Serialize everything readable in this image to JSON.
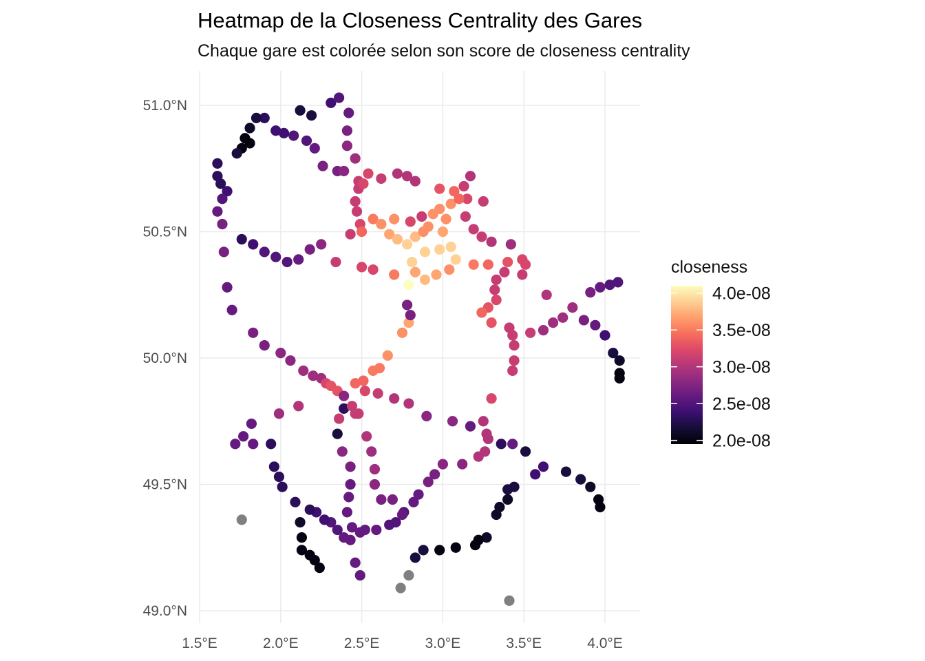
{
  "chart_data": {
    "type": "scatter",
    "title": "Heatmap de la Closeness Centrality des Gares",
    "subtitle": "Chaque gare est colorée selon son score de closeness centrality",
    "xlabel": "",
    "ylabel": "",
    "xlim": [
      1.5,
      4.2
    ],
    "ylim": [
      49.0,
      51.13
    ],
    "x_ticks": [
      1.5,
      2.0,
      2.5,
      3.0,
      3.5,
      4.0
    ],
    "x_tick_labels": [
      "1.5°E",
      "2.0°E",
      "2.5°E",
      "3.0°E",
      "3.5°E",
      "4.0°E"
    ],
    "y_ticks": [
      49.0,
      49.5,
      50.0,
      50.5,
      51.0
    ],
    "y_tick_labels": [
      "49.0°N",
      "49.5°N",
      "50.0°N",
      "50.5°N",
      "51.0°N"
    ],
    "grid": true,
    "legend": {
      "title": "closeness",
      "placement": "right",
      "colormap": "magma",
      "range": [
        1.95e-08,
        4.1e-08
      ],
      "breaks": [
        4e-08,
        3.5e-08,
        3e-08,
        2.5e-08,
        2e-08
      ],
      "labels": [
        "4.0e-08",
        "3.5e-08",
        "3.0e-08",
        "2.5e-08",
        "2.0e-08"
      ]
    },
    "na_color": "#808080",
    "points_columns": [
      "lon",
      "lat",
      "closeness"
    ],
    "points": [
      [
        2.12,
        50.98,
        2.2e-08
      ],
      [
        2.19,
        50.96,
        2.2e-08
      ],
      [
        2.31,
        51.01,
        2.4e-08
      ],
      [
        2.36,
        51.03,
        2.5e-08
      ],
      [
        2.42,
        50.97,
        2.6e-08
      ],
      [
        2.41,
        50.9,
        2.7e-08
      ],
      [
        2.41,
        50.84,
        2.8e-08
      ],
      [
        2.46,
        50.79,
        2.9e-08
      ],
      [
        2.26,
        50.76,
        2.7e-08
      ],
      [
        2.21,
        50.83,
        2.6e-08
      ],
      [
        2.16,
        50.86,
        2.5e-08
      ],
      [
        2.08,
        50.88,
        2.5e-08
      ],
      [
        2.02,
        50.89,
        2.4e-08
      ],
      [
        1.97,
        50.9,
        2.4e-08
      ],
      [
        1.9,
        50.95,
        2.3e-08
      ],
      [
        1.85,
        50.95,
        2.2e-08
      ],
      [
        1.81,
        50.91,
        2.1e-08
      ],
      [
        1.78,
        50.87,
        2e-08
      ],
      [
        1.81,
        50.85,
        2e-08
      ],
      [
        1.76,
        50.83,
        2e-08
      ],
      [
        1.73,
        50.81,
        2.2e-08
      ],
      [
        1.61,
        50.77,
        2.3e-08
      ],
      [
        1.61,
        50.72,
        2.3e-08
      ],
      [
        1.63,
        50.69,
        2.3e-08
      ],
      [
        1.67,
        50.66,
        2.4e-08
      ],
      [
        1.64,
        50.63,
        2.5e-08
      ],
      [
        1.61,
        50.58,
        2.6e-08
      ],
      [
        1.64,
        50.53,
        2.7e-08
      ],
      [
        1.65,
        50.42,
        2.7e-08
      ],
      [
        1.67,
        50.28,
        2.6e-08
      ],
      [
        1.7,
        50.19,
        2.6e-08
      ],
      [
        1.83,
        50.1,
        2.7e-08
      ],
      [
        1.9,
        50.05,
        2.7e-08
      ],
      [
        2.0,
        50.02,
        2.8e-08
      ],
      [
        2.06,
        49.99,
        2.8e-08
      ],
      [
        2.14,
        49.95,
        2.9e-08
      ],
      [
        2.2,
        49.93,
        2.9e-08
      ],
      [
        2.25,
        49.92,
        2.9e-08
      ],
      [
        2.28,
        49.9,
        3.2e-08
      ],
      [
        2.31,
        49.89,
        3.3e-08
      ],
      [
        2.35,
        49.87,
        3.3e-08
      ],
      [
        2.39,
        49.85,
        2.8e-08
      ],
      [
        2.39,
        49.8,
        2.3e-08
      ],
      [
        2.44,
        49.81,
        3.1e-08
      ],
      [
        2.46,
        49.78,
        3.1e-08
      ],
      [
        2.36,
        49.76,
        3.1e-08
      ],
      [
        2.35,
        49.7,
        2.2e-08
      ],
      [
        2.38,
        49.63,
        2.8e-08
      ],
      [
        2.43,
        49.57,
        2.7e-08
      ],
      [
        2.43,
        49.5,
        2.6e-08
      ],
      [
        2.42,
        49.45,
        2.6e-08
      ],
      [
        2.41,
        49.39,
        2.6e-08
      ],
      [
        2.44,
        49.33,
        2.6e-08
      ],
      [
        2.43,
        49.28,
        2.6e-08
      ],
      [
        2.39,
        49.29,
        2.6e-08
      ],
      [
        2.35,
        49.32,
        2.5e-08
      ],
      [
        2.31,
        49.35,
        2.5e-08
      ],
      [
        2.27,
        49.36,
        2.4e-08
      ],
      [
        2.22,
        49.39,
        2.4e-08
      ],
      [
        2.18,
        49.4,
        2.3e-08
      ],
      [
        2.09,
        49.43,
        2.3e-08
      ],
      [
        2.01,
        49.49,
        2.3e-08
      ],
      [
        1.99,
        49.53,
        2.3e-08
      ],
      [
        1.96,
        49.57,
        2.3e-08
      ],
      [
        1.94,
        49.66,
        2.3e-08
      ],
      [
        1.83,
        49.66,
        2.6e-08
      ],
      [
        1.82,
        49.74,
        2.6e-08
      ],
      [
        1.77,
        49.69,
        2.6e-08
      ],
      [
        1.72,
        49.66,
        2.6e-08
      ],
      [
        1.76,
        49.36,
        null
      ],
      [
        2.12,
        49.35,
        2.1e-08
      ],
      [
        2.13,
        49.29,
        2e-08
      ],
      [
        2.13,
        49.24,
        2e-08
      ],
      [
        2.18,
        49.22,
        2e-08
      ],
      [
        2.21,
        49.2,
        2e-08
      ],
      [
        2.24,
        49.17,
        2e-08
      ],
      [
        2.46,
        49.19,
        2.6e-08
      ],
      [
        2.49,
        49.14,
        2.6e-08
      ],
      [
        2.49,
        49.31,
        2.6e-08
      ],
      [
        2.52,
        49.32,
        2.6e-08
      ],
      [
        2.59,
        49.32,
        2.6e-08
      ],
      [
        2.67,
        49.34,
        2.5e-08
      ],
      [
        2.71,
        49.35,
        2.5e-08
      ],
      [
        2.76,
        49.39,
        2.5e-08
      ],
      [
        2.82,
        49.43,
        2.6e-08
      ],
      [
        2.85,
        49.46,
        2.6e-08
      ],
      [
        2.91,
        49.51,
        2.7e-08
      ],
      [
        2.95,
        49.54,
        2.7e-08
      ],
      [
        3.0,
        49.58,
        2.8e-08
      ],
      [
        3.12,
        49.58,
        2.8e-08
      ],
      [
        3.22,
        49.61,
        3e-08
      ],
      [
        3.26,
        49.63,
        3e-08
      ],
      [
        3.36,
        49.66,
        2.3e-08
      ],
      [
        3.43,
        49.66,
        2.6e-08
      ],
      [
        3.51,
        49.63,
        2.2e-08
      ],
      [
        3.44,
        49.49,
        2.2e-08
      ],
      [
        3.4,
        49.48,
        2.2e-08
      ],
      [
        3.4,
        49.44,
        2.1e-08
      ],
      [
        3.35,
        49.41,
        2.1e-08
      ],
      [
        3.33,
        49.38,
        2.1e-08
      ],
      [
        3.27,
        49.29,
        2.1e-08
      ],
      [
        3.22,
        49.28,
        2e-08
      ],
      [
        3.2,
        49.26,
        2e-08
      ],
      [
        3.08,
        49.25,
        2e-08
      ],
      [
        2.98,
        49.24,
        2e-08
      ],
      [
        2.88,
        49.24,
        2.2e-08
      ],
      [
        2.83,
        49.21,
        2.2e-08
      ],
      [
        2.79,
        49.14,
        null
      ],
      [
        2.74,
        49.09,
        null
      ],
      [
        3.41,
        49.04,
        null
      ],
      [
        2.58,
        49.5,
        2.8e-08
      ],
      [
        2.58,
        49.56,
        2.9e-08
      ],
      [
        2.56,
        49.63,
        2.9e-08
      ],
      [
        2.53,
        49.69,
        3e-08
      ],
      [
        2.48,
        49.78,
        3.1e-08
      ],
      [
        2.62,
        49.44,
        2.7e-08
      ],
      [
        2.69,
        49.44,
        2.7e-08
      ],
      [
        2.75,
        49.38,
        2.6e-08
      ],
      [
        3.57,
        49.54,
        2.4e-08
      ],
      [
        3.62,
        49.57,
        2.4e-08
      ],
      [
        3.76,
        49.55,
        2.2e-08
      ],
      [
        3.85,
        49.52,
        2.2e-08
      ],
      [
        3.91,
        49.49,
        2.1e-08
      ],
      [
        3.96,
        49.44,
        2e-08
      ],
      [
        3.97,
        49.41,
        2e-08
      ],
      [
        2.7,
        49.84,
        3e-08
      ],
      [
        2.79,
        49.82,
        3e-08
      ],
      [
        2.9,
        49.77,
        2.8e-08
      ],
      [
        3.06,
        49.75,
        2.8e-08
      ],
      [
        3.17,
        49.73,
        2.6e-08
      ],
      [
        3.25,
        49.75,
        3e-08
      ],
      [
        3.27,
        49.7,
        3e-08
      ],
      [
        3.28,
        49.68,
        3e-08
      ],
      [
        3.3,
        49.84,
        3.2e-08
      ],
      [
        2.6,
        49.86,
        3.1e-08
      ],
      [
        2.52,
        49.87,
        3.2e-08
      ],
      [
        2.46,
        49.9,
        3.4e-08
      ],
      [
        2.51,
        49.91,
        3.4e-08
      ],
      [
        2.57,
        49.95,
        3.5e-08
      ],
      [
        2.61,
        49.96,
        3.5e-08
      ],
      [
        2.66,
        50.01,
        3.6e-08
      ],
      [
        2.75,
        50.1,
        3.6e-08
      ],
      [
        2.79,
        50.14,
        3.7e-08
      ],
      [
        2.78,
        50.21,
        2.7e-08
      ],
      [
        2.8,
        50.17,
        2.7e-08
      ],
      [
        2.79,
        50.29,
        4.1e-08
      ],
      [
        2.11,
        49.81,
        3e-08
      ],
      [
        1.99,
        49.78,
        2.9e-08
      ],
      [
        2.35,
        50.74,
        2.7e-08
      ],
      [
        2.39,
        50.74,
        2.8e-08
      ],
      [
        2.48,
        50.7,
        3.1e-08
      ],
      [
        2.48,
        50.67,
        3.1e-08
      ],
      [
        2.51,
        50.69,
        3.2e-08
      ],
      [
        2.54,
        50.73,
        3.2e-08
      ],
      [
        2.62,
        50.71,
        3.1e-08
      ],
      [
        2.72,
        50.73,
        3e-08
      ],
      [
        2.78,
        50.72,
        3e-08
      ],
      [
        2.83,
        50.7,
        3e-08
      ],
      [
        2.98,
        50.67,
        3.3e-08
      ],
      [
        3.07,
        50.66,
        3.4e-08
      ],
      [
        3.13,
        50.68,
        3.1e-08
      ],
      [
        3.17,
        50.72,
        3e-08
      ],
      [
        3.15,
        50.63,
        3.2e-08
      ],
      [
        3.25,
        50.62,
        3.1e-08
      ],
      [
        2.46,
        50.62,
        3.1e-08
      ],
      [
        2.47,
        50.58,
        3.1e-08
      ],
      [
        2.49,
        50.53,
        3.2e-08
      ],
      [
        2.43,
        50.49,
        3.1e-08
      ],
      [
        2.5,
        50.5,
        3.4e-08
      ],
      [
        2.57,
        50.55,
        3.5e-08
      ],
      [
        2.62,
        50.53,
        3.6e-08
      ],
      [
        2.7,
        50.55,
        3.6e-08
      ],
      [
        2.8,
        50.54,
        3.2e-08
      ],
      [
        2.87,
        50.56,
        3.1e-08
      ],
      [
        2.67,
        50.49,
        3.7e-08
      ],
      [
        2.72,
        50.47,
        3.8e-08
      ],
      [
        2.78,
        50.45,
        3.9e-08
      ],
      [
        2.83,
        50.48,
        3.8e-08
      ],
      [
        2.88,
        50.5,
        3.6e-08
      ],
      [
        2.91,
        50.52,
        3.6e-08
      ],
      [
        2.94,
        50.57,
        3.6e-08
      ],
      [
        2.98,
        50.59,
        3.6e-08
      ],
      [
        3.05,
        50.61,
        3.6e-08
      ],
      [
        3.02,
        50.55,
        3.6e-08
      ],
      [
        3.0,
        50.5,
        3.7e-08
      ],
      [
        3.05,
        50.44,
        3.9e-08
      ],
      [
        3.08,
        50.39,
        3.9e-08
      ],
      [
        2.98,
        50.43,
        3.9e-08
      ],
      [
        2.89,
        50.42,
        3.9e-08
      ],
      [
        2.81,
        50.38,
        3.9e-08
      ],
      [
        2.83,
        50.34,
        3.7e-08
      ],
      [
        2.89,
        50.31,
        3.8e-08
      ],
      [
        2.96,
        50.33,
        3.7e-08
      ],
      [
        3.04,
        50.35,
        3.6e-08
      ],
      [
        2.7,
        50.33,
        3.5e-08
      ],
      [
        2.57,
        50.35,
        3.2e-08
      ],
      [
        2.5,
        50.36,
        3.2e-08
      ],
      [
        2.34,
        50.38,
        3.1e-08
      ],
      [
        3.1,
        50.63,
        3.4e-08
      ],
      [
        3.14,
        50.56,
        3.1e-08
      ],
      [
        3.19,
        50.51,
        3.1e-08
      ],
      [
        3.24,
        50.48,
        3.1e-08
      ],
      [
        3.3,
        50.46,
        3e-08
      ],
      [
        3.42,
        50.45,
        2.9e-08
      ],
      [
        3.19,
        50.37,
        3.5e-08
      ],
      [
        3.28,
        50.37,
        3.4e-08
      ],
      [
        3.4,
        50.38,
        3.3e-08
      ],
      [
        3.49,
        50.39,
        3.2e-08
      ],
      [
        3.51,
        50.37,
        3.2e-08
      ],
      [
        3.49,
        50.33,
        3.1e-08
      ],
      [
        3.38,
        50.34,
        3.1e-08
      ],
      [
        3.33,
        50.31,
        3.1e-08
      ],
      [
        3.32,
        50.27,
        3.1e-08
      ],
      [
        3.33,
        50.23,
        3.2e-08
      ],
      [
        3.28,
        50.2,
        3.3e-08
      ],
      [
        3.24,
        50.18,
        3.4e-08
      ],
      [
        3.3,
        50.14,
        3.3e-08
      ],
      [
        3.41,
        50.12,
        3.1e-08
      ],
      [
        3.43,
        50.09,
        3.1e-08
      ],
      [
        3.44,
        50.05,
        3.1e-08
      ],
      [
        3.44,
        49.99,
        3.1e-08
      ],
      [
        3.43,
        49.95,
        3.1e-08
      ],
      [
        3.54,
        50.1,
        3.1e-08
      ],
      [
        3.62,
        50.11,
        2.9e-08
      ],
      [
        3.68,
        50.14,
        2.9e-08
      ],
      [
        3.74,
        50.16,
        2.9e-08
      ],
      [
        3.8,
        50.2,
        2.9e-08
      ],
      [
        3.87,
        50.15,
        2.7e-08
      ],
      [
        3.94,
        50.13,
        2.6e-08
      ],
      [
        4.0,
        50.09,
        2.4e-08
      ],
      [
        3.91,
        50.26,
        2.7e-08
      ],
      [
        3.97,
        50.28,
        2.6e-08
      ],
      [
        4.03,
        50.29,
        2.5e-08
      ],
      [
        4.08,
        50.3,
        2.5e-08
      ],
      [
        3.64,
        50.25,
        3e-08
      ],
      [
        4.05,
        50.02,
        2.2e-08
      ],
      [
        4.09,
        49.99,
        2.1e-08
      ],
      [
        4.09,
        49.94,
        2e-08
      ],
      [
        4.09,
        49.92,
        2e-08
      ],
      [
        1.76,
        50.47,
        2.3e-08
      ],
      [
        1.83,
        50.45,
        2.4e-08
      ],
      [
        1.9,
        50.42,
        2.5e-08
      ],
      [
        1.97,
        50.4,
        2.5e-08
      ],
      [
        2.04,
        50.38,
        2.5e-08
      ],
      [
        2.11,
        50.39,
        2.6e-08
      ],
      [
        2.18,
        50.43,
        2.7e-08
      ],
      [
        2.25,
        50.45,
        2.8e-08
      ]
    ]
  }
}
